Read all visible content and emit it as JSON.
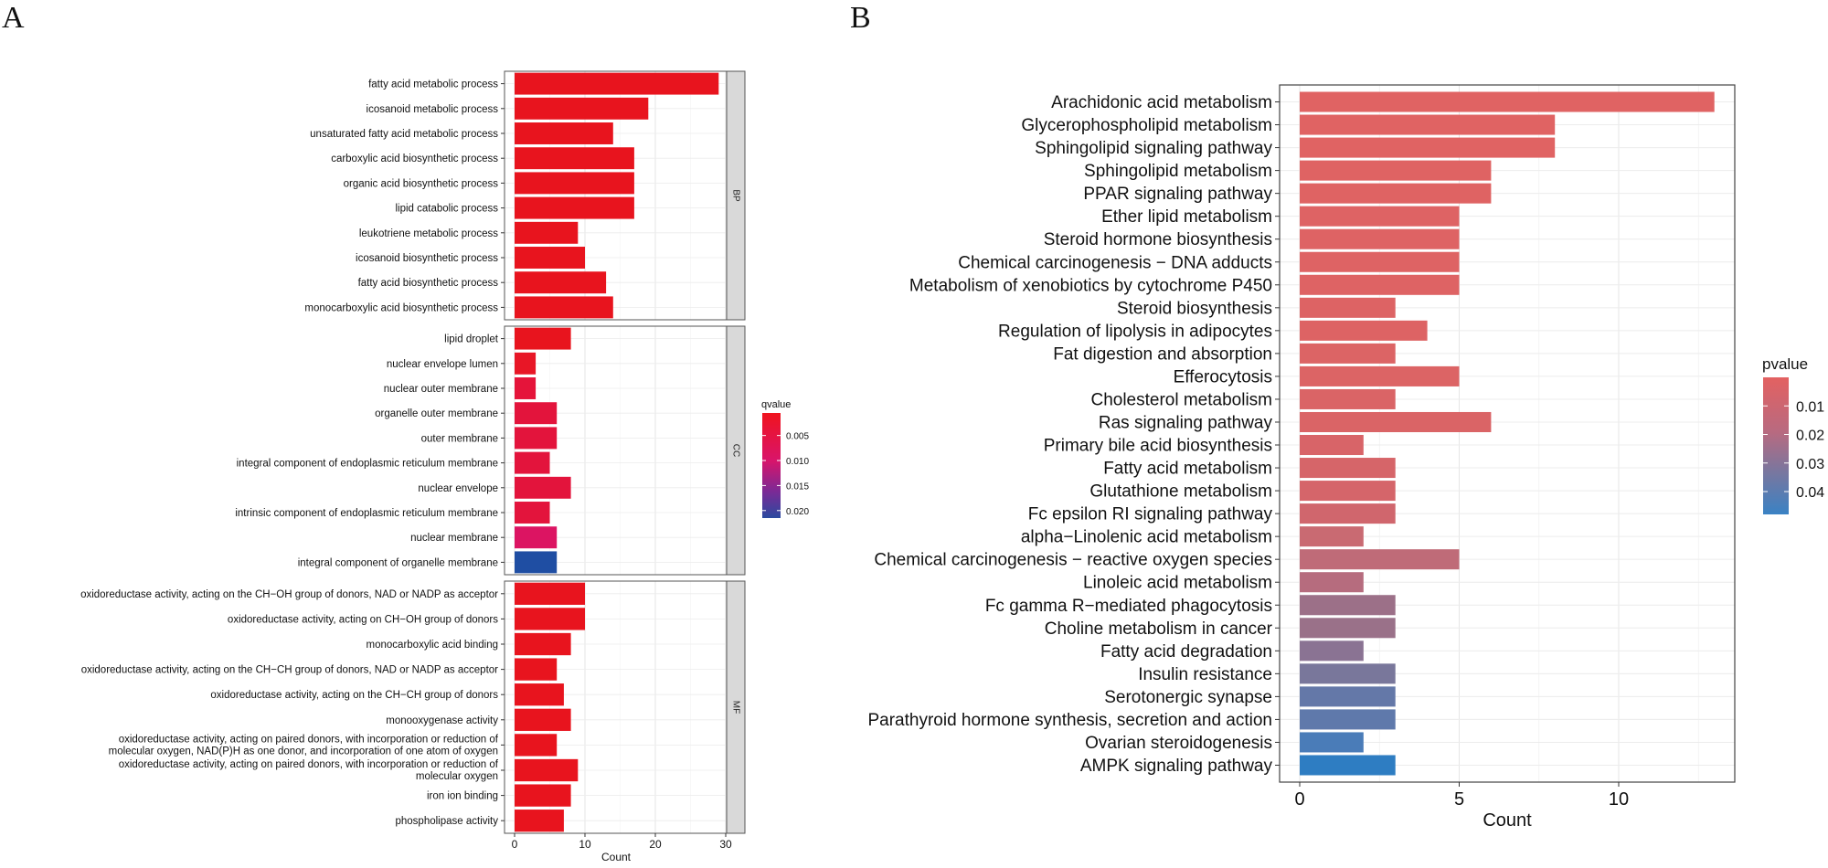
{
  "figure": {
    "panel_labels": [
      "A",
      "B"
    ]
  },
  "chart_data": [
    {
      "panel": "A",
      "type": "bar",
      "orientation": "horizontal",
      "title": "",
      "xlabel": "Count",
      "ylabel": "",
      "xlim": [
        0,
        31
      ],
      "xticks": [
        0,
        10,
        20,
        30
      ],
      "grid": true,
      "legend": {
        "title": "qvalue",
        "type": "colorbar",
        "placement": "right",
        "ticks": [
          "0.005",
          "0.010",
          "0.015",
          "0.020"
        ],
        "tick_values": [
          0.005,
          0.01,
          0.015,
          0.02
        ],
        "range": [
          0.0005,
          0.0215
        ],
        "low_color": "#e8141e",
        "high_color": "#2a4a9f"
      },
      "facets": [
        {
          "label": "BP",
          "categories": [
            "fatty acid metabolic process",
            "icosanoid metabolic process",
            "unsaturated fatty acid metabolic process",
            "carboxylic acid biosynthetic process",
            "organic acid biosynthetic process",
            "lipid catabolic process",
            "leukotriene metabolic process",
            "icosanoid biosynthetic process",
            "fatty acid biosynthetic process",
            "monocarboxylic acid biosynthetic process"
          ],
          "values": [
            29,
            19,
            14,
            17,
            17,
            17,
            9,
            10,
            13,
            14
          ],
          "colors": [
            "#e8141e",
            "#e8141e",
            "#e8141e",
            "#e8141e",
            "#e8141e",
            "#e8141e",
            "#e8141e",
            "#e8141e",
            "#e8141e",
            "#e8141e"
          ]
        },
        {
          "label": "CC",
          "categories": [
            "lipid droplet",
            "nuclear envelope lumen",
            "nuclear outer membrane",
            "organelle outer membrane",
            "outer membrane",
            "integral component of endoplasmic reticulum membrane",
            "nuclear envelope",
            "intrinsic component of endoplasmic reticulum membrane",
            "nuclear membrane",
            "integral component of organelle membrane"
          ],
          "values": [
            8,
            3,
            3,
            6,
            6,
            5,
            8,
            5,
            6,
            6
          ],
          "colors": [
            "#e8141e",
            "#e81626",
            "#e5143a",
            "#e3143c",
            "#e3143c",
            "#e3143c",
            "#e3143c",
            "#e3143c",
            "#dc1462",
            "#1f4ea3"
          ]
        },
        {
          "label": "MF",
          "categories": [
            "oxidoreductase activity, acting on the CH-OH group of donors, NAD or NADP as acceptor",
            "oxidoreductase activity, acting on CH-OH group of donors",
            "monocarboxylic acid binding",
            "oxidoreductase activity, acting on the CH-CH group of donors, NAD or NADP as acceptor",
            "oxidoreductase activity, acting on the CH-CH group of donors",
            "monooxygenase activity",
            "oxidoreductase activity, acting on paired donors, with incorporation or reduction of molecular oxygen, NAD(P)H as one donor, and incorporation of one atom of oxygen",
            "oxidoreductase activity, acting on paired donors, with incorporation or reduction of molecular oxygen",
            "iron ion binding",
            "phospholipase activity"
          ],
          "label_lines": [
            [
              "oxidoreductase activity, acting on the CH−OH group of donors, NAD or NADP as acceptor"
            ],
            [
              "oxidoreductase activity, acting on CH−OH group of donors"
            ],
            [
              "monocarboxylic acid binding"
            ],
            [
              "oxidoreductase activity, acting on the CH−CH group of donors, NAD or NADP as acceptor"
            ],
            [
              "oxidoreductase activity, acting on the CH−CH group of donors"
            ],
            [
              "monooxygenase activity"
            ],
            [
              "oxidoreductase activity, acting on paired donors, with incorporation or reduction of",
              "molecular oxygen, NAD(P)H as one donor, and incorporation of one atom of oxygen"
            ],
            [
              "oxidoreductase activity, acting on paired donors, with incorporation or reduction of",
              "molecular oxygen"
            ],
            [
              "iron ion binding"
            ],
            [
              "phospholipase activity"
            ]
          ],
          "values": [
            10,
            10,
            8,
            6,
            7,
            8,
            6,
            9,
            8,
            7
          ],
          "colors": [
            "#e8141e",
            "#e8141e",
            "#e8141e",
            "#e8141e",
            "#e8141e",
            "#e8141e",
            "#e8141e",
            "#e8141e",
            "#e8141e",
            "#e8141e"
          ]
        }
      ]
    },
    {
      "panel": "B",
      "type": "bar",
      "orientation": "horizontal",
      "title": "",
      "xlabel": "Count",
      "ylabel": "",
      "xlim": [
        -0.65,
        13.65
      ],
      "xticks": [
        0,
        5,
        10
      ],
      "grid": true,
      "legend": {
        "title": "pvalue",
        "type": "colorbar",
        "placement": "right",
        "ticks": [
          "0.01",
          "0.02",
          "0.03",
          "0.04"
        ],
        "tick_values": [
          0.01,
          0.02,
          0.03,
          0.04
        ],
        "range": [
          0.0,
          0.048
        ],
        "low_color": "#e36161",
        "high_color": "#3a82c4"
      },
      "categories": [
        "Arachidonic acid metabolism",
        "Glycerophospholipid metabolism",
        "Sphingolipid signaling pathway",
        "Sphingolipid metabolism",
        "PPAR signaling pathway",
        "Ether lipid metabolism",
        "Steroid hormone biosynthesis",
        "Chemical carcinogenesis − DNA adducts",
        "Metabolism of xenobiotics by cytochrome P450",
        "Steroid biosynthesis",
        "Regulation of lipolysis in adipocytes",
        "Fat digestion and absorption",
        "Efferocytosis",
        "Cholesterol metabolism",
        "Ras signaling pathway",
        "Primary bile acid biosynthesis",
        "Fatty acid metabolism",
        "Glutathione metabolism",
        "Fc epsilon RI signaling pathway",
        "alpha−Linolenic acid metabolism",
        "Chemical carcinogenesis − reactive oxygen species",
        "Linoleic acid metabolism",
        "Fc gamma R−mediated phagocytosis",
        "Choline metabolism in cancer",
        "Fatty acid degradation",
        "Insulin resistance",
        "Serotonergic synapse",
        "Parathyroid hormone synthesis, secretion and action",
        "Ovarian steroidogenesis",
        "AMPK signaling pathway"
      ],
      "values": [
        13,
        8,
        8,
        6,
        6,
        5,
        5,
        5,
        5,
        3,
        4,
        3,
        5,
        3,
        6,
        2,
        3,
        3,
        3,
        2,
        5,
        2,
        3,
        3,
        2,
        3,
        3,
        3,
        2,
        3
      ],
      "colors": [
        "#e06363",
        "#e06363",
        "#e06363",
        "#df6363",
        "#df6363",
        "#de6364",
        "#de6364",
        "#de6364",
        "#de6364",
        "#dd6364",
        "#dd6364",
        "#dc6465",
        "#dc6465",
        "#da6466",
        "#da6466",
        "#d86468",
        "#d66569",
        "#d5656a",
        "#d0666d",
        "#c96a72",
        "#bf6b78",
        "#b66c7e",
        "#9c7088",
        "#9a7189",
        "#8a7393",
        "#79779b",
        "#6478a8",
        "#5f79ab",
        "#4a7cb8",
        "#2e7dc2"
      ]
    }
  ]
}
